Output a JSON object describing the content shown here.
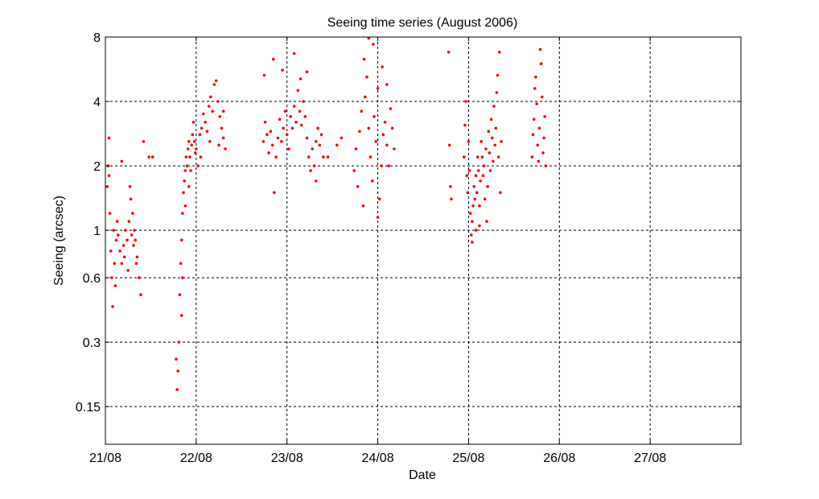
{
  "chart_data": {
    "type": "scatter",
    "title": "Seeing time series (August 2006)",
    "xlabel": "Date",
    "ylabel": "Seeing (arcsec)",
    "x_unit": "days of August 2006",
    "xlim": [
      21,
      28
    ],
    "ylim": [
      0.1,
      8
    ],
    "yscale": "log",
    "x_ticks": [
      {
        "value": 21,
        "label": "21/08"
      },
      {
        "value": 22,
        "label": "22/08"
      },
      {
        "value": 23,
        "label": "23/08"
      },
      {
        "value": 24,
        "label": "24/08"
      },
      {
        "value": 25,
        "label": "25/08"
      },
      {
        "value": 26,
        "label": "26/08"
      },
      {
        "value": 27,
        "label": "27/08"
      }
    ],
    "y_ticks": [
      {
        "value": 0.15,
        "label": "0.15"
      },
      {
        "value": 0.3,
        "label": "0.3"
      },
      {
        "value": 0.6,
        "label": "0.6"
      },
      {
        "value": 1,
        "label": "1"
      },
      {
        "value": 2,
        "label": "2"
      },
      {
        "value": 4,
        "label": "4"
      },
      {
        "value": 8,
        "label": "8"
      }
    ],
    "grid": true,
    "marker_color": "#ff0000",
    "series": [
      {
        "points": [
          [
            21.02,
            1.6
          ],
          [
            21.03,
            2.0
          ],
          [
            21.04,
            1.8
          ],
          [
            21.05,
            1.2
          ],
          [
            21.06,
            0.8
          ],
          [
            21.07,
            0.6
          ],
          [
            21.08,
            0.44
          ],
          [
            21.09,
            1.0
          ],
          [
            21.1,
            0.7
          ],
          [
            21.11,
            0.55
          ],
          [
            21.12,
            0.9
          ],
          [
            21.13,
            1.1
          ],
          [
            21.14,
            0.95
          ],
          [
            21.16,
            0.8
          ],
          [
            21.18,
            0.7
          ],
          [
            21.2,
            0.85
          ],
          [
            21.22,
            1.0
          ],
          [
            21.24,
            0.9
          ],
          [
            21.26,
            1.1
          ],
          [
            21.28,
            1.4
          ],
          [
            21.3,
            1.2
          ],
          [
            21.32,
            1.0
          ],
          [
            21.33,
            0.9
          ],
          [
            21.35,
            0.75
          ],
          [
            21.37,
            0.6
          ],
          [
            21.39,
            0.5
          ],
          [
            21.04,
            2.7
          ],
          [
            21.18,
            2.1
          ],
          [
            21.21,
            0.75
          ],
          [
            21.25,
            0.65
          ],
          [
            21.27,
            1.6
          ],
          [
            21.29,
            0.95
          ],
          [
            21.31,
            0.85
          ],
          [
            21.34,
            0.7
          ],
          [
            21.42,
            2.6
          ],
          [
            21.48,
            2.2
          ],
          [
            21.52,
            2.2
          ],
          [
            21.78,
            0.25
          ],
          [
            21.79,
            0.18
          ],
          [
            21.8,
            0.22
          ],
          [
            21.81,
            0.3
          ],
          [
            21.82,
            0.5
          ],
          [
            21.83,
            0.7
          ],
          [
            21.84,
            0.9
          ],
          [
            21.85,
            1.2
          ],
          [
            21.86,
            1.5
          ],
          [
            21.87,
            1.7
          ],
          [
            21.88,
            1.9
          ],
          [
            21.89,
            2.2
          ],
          [
            21.9,
            2.0
          ],
          [
            21.91,
            2.4
          ],
          [
            21.92,
            2.6
          ],
          [
            21.93,
            2.2
          ],
          [
            21.94,
            1.9
          ],
          [
            21.95,
            2.5
          ],
          [
            21.96,
            2.8
          ],
          [
            21.97,
            3.2
          ],
          [
            21.98,
            2.6
          ],
          [
            21.99,
            2.3
          ],
          [
            22.0,
            2.4
          ],
          [
            22.02,
            2.0
          ],
          [
            22.04,
            2.8
          ],
          [
            22.06,
            3.0
          ],
          [
            22.08,
            3.5
          ],
          [
            22.1,
            3.2
          ],
          [
            22.12,
            2.9
          ],
          [
            22.14,
            3.8
          ],
          [
            22.16,
            4.2
          ],
          [
            22.18,
            3.6
          ],
          [
            22.2,
            4.8
          ],
          [
            22.22,
            5.0
          ],
          [
            22.24,
            4.0
          ],
          [
            22.26,
            3.4
          ],
          [
            22.28,
            3.0
          ],
          [
            22.3,
            2.7
          ],
          [
            22.32,
            2.4
          ],
          [
            21.84,
            0.4
          ],
          [
            21.85,
            0.6
          ],
          [
            21.88,
            1.3
          ],
          [
            21.92,
            1.6
          ],
          [
            22.05,
            2.2
          ],
          [
            22.15,
            2.6
          ],
          [
            22.25,
            2.5
          ],
          [
            22.3,
            3.6
          ],
          [
            22.74,
            2.6
          ],
          [
            22.76,
            3.2
          ],
          [
            22.78,
            2.8
          ],
          [
            22.8,
            2.3
          ],
          [
            22.82,
            2.9
          ],
          [
            22.84,
            2.5
          ],
          [
            22.86,
            1.5
          ],
          [
            22.88,
            2.2
          ],
          [
            22.9,
            2.7
          ],
          [
            22.92,
            3.3
          ],
          [
            22.94,
            2.6
          ],
          [
            22.96,
            3.0
          ],
          [
            22.98,
            3.6
          ],
          [
            23.0,
            2.8
          ],
          [
            23.02,
            2.4
          ],
          [
            23.04,
            3.4
          ],
          [
            23.06,
            3.0
          ],
          [
            23.08,
            3.8
          ],
          [
            23.1,
            3.2
          ],
          [
            23.12,
            4.5
          ],
          [
            23.14,
            3.6
          ],
          [
            23.16,
            3.1
          ],
          [
            23.18,
            4.0
          ],
          [
            23.2,
            3.4
          ],
          [
            23.22,
            2.7
          ],
          [
            23.24,
            2.2
          ],
          [
            23.26,
            1.9
          ],
          [
            23.28,
            2.4
          ],
          [
            23.3,
            2.0
          ],
          [
            23.32,
            2.6
          ],
          [
            23.34,
            3.0
          ],
          [
            23.36,
            2.5
          ],
          [
            23.38,
            2.8
          ],
          [
            23.4,
            2.2
          ],
          [
            22.75,
            5.3
          ],
          [
            22.85,
            6.3
          ],
          [
            22.95,
            5.6
          ],
          [
            23.08,
            6.7
          ],
          [
            23.15,
            5.1
          ],
          [
            23.22,
            5.5
          ],
          [
            23.32,
            1.7
          ],
          [
            23.45,
            2.2
          ],
          [
            23.55,
            2.5
          ],
          [
            23.6,
            2.7
          ],
          [
            23.74,
            1.9
          ],
          [
            23.76,
            2.4
          ],
          [
            23.78,
            1.6
          ],
          [
            23.8,
            2.9
          ],
          [
            23.82,
            3.6
          ],
          [
            23.84,
            1.3
          ],
          [
            23.86,
            4.2
          ],
          [
            23.88,
            5.2
          ],
          [
            23.9,
            3.0
          ],
          [
            23.92,
            2.2
          ],
          [
            23.94,
            1.7
          ],
          [
            23.96,
            3.4
          ],
          [
            23.98,
            2.6
          ],
          [
            24.0,
            4.6
          ],
          [
            24.02,
            1.4
          ],
          [
            24.04,
            2.0
          ],
          [
            24.06,
            2.8
          ],
          [
            24.08,
            3.2
          ],
          [
            24.1,
            2.5
          ],
          [
            24.12,
            2.0
          ],
          [
            24.14,
            3.7
          ],
          [
            24.16,
            3.0
          ],
          [
            24.18,
            2.4
          ],
          [
            23.85,
            6.3
          ],
          [
            23.9,
            7.9
          ],
          [
            23.95,
            7.4
          ],
          [
            24.0,
            1.15
          ],
          [
            24.05,
            5.8
          ],
          [
            24.1,
            4.8
          ],
          [
            24.78,
            6.8
          ],
          [
            24.79,
            2.5
          ],
          [
            24.8,
            1.6
          ],
          [
            24.81,
            1.4
          ],
          [
            24.95,
            2.2
          ],
          [
            24.96,
            3.1
          ],
          [
            24.97,
            4.0
          ],
          [
            24.98,
            1.8
          ],
          [
            24.99,
            1.5
          ],
          [
            25.0,
            2.6
          ],
          [
            25.01,
            1.9
          ],
          [
            25.02,
            1.2
          ],
          [
            25.03,
            0.95
          ],
          [
            25.04,
            1.1
          ],
          [
            25.05,
            1.3
          ],
          [
            25.06,
            1.6
          ],
          [
            25.07,
            1.4
          ],
          [
            25.08,
            1.8
          ],
          [
            25.09,
            1.5
          ],
          [
            25.1,
            2.2
          ],
          [
            25.11,
            1.9
          ],
          [
            25.12,
            1.3
          ],
          [
            25.13,
            1.7
          ],
          [
            25.14,
            2.6
          ],
          [
            25.15,
            2.2
          ],
          [
            25.16,
            1.8
          ],
          [
            25.17,
            2.0
          ],
          [
            25.18,
            1.4
          ],
          [
            25.19,
            2.4
          ],
          [
            25.2,
            1.1
          ],
          [
            25.21,
            1.6
          ],
          [
            25.22,
            2.9
          ],
          [
            25.23,
            2.3
          ],
          [
            25.24,
            1.9
          ],
          [
            25.25,
            3.3
          ],
          [
            25.26,
            2.7
          ],
          [
            25.27,
            2.1
          ],
          [
            25.28,
            3.8
          ],
          [
            25.29,
            2.5
          ],
          [
            25.3,
            3.0
          ],
          [
            25.31,
            4.4
          ],
          [
            25.32,
            5.3
          ],
          [
            25.33,
            2.2
          ],
          [
            25.34,
            6.8
          ],
          [
            25.35,
            1.5
          ],
          [
            25.36,
            2.6
          ],
          [
            25.04,
            0.88
          ],
          [
            25.08,
            1.0
          ],
          [
            25.12,
            1.05
          ],
          [
            25.7,
            2.2
          ],
          [
            25.71,
            2.8
          ],
          [
            25.72,
            3.3
          ],
          [
            25.73,
            4.6
          ],
          [
            25.74,
            5.2
          ],
          [
            25.75,
            3.9
          ],
          [
            25.76,
            2.5
          ],
          [
            25.77,
            2.1
          ],
          [
            25.78,
            3.0
          ],
          [
            25.79,
            7.0
          ],
          [
            25.8,
            6.0
          ],
          [
            25.81,
            4.2
          ],
          [
            25.82,
            2.3
          ],
          [
            25.83,
            2.7
          ],
          [
            25.84,
            3.4
          ],
          [
            25.85,
            2.0
          ]
        ]
      }
    ]
  }
}
